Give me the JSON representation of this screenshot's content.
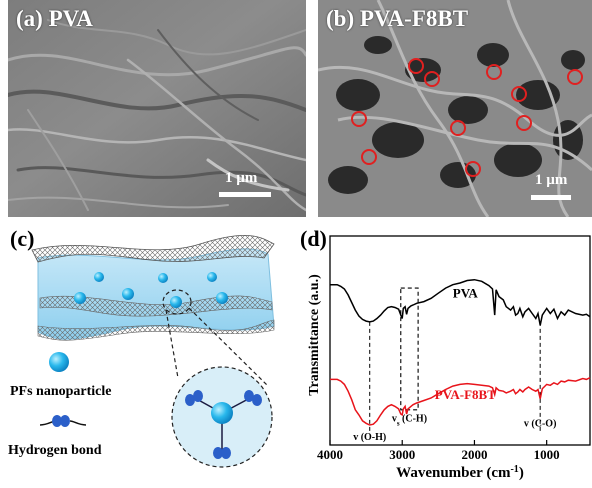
{
  "panel_a": {
    "label": "(a) PVA",
    "scale_text": "1 µm"
  },
  "panel_b": {
    "label": "(b) PVA-F8BT",
    "scale_text": "1 µm"
  },
  "panel_c": {
    "label": "(c)",
    "legend_nanoparticle": "PFs nanoparticle",
    "legend_hbond": "Hydrogen bond"
  },
  "panel_d": {
    "label": "(d)",
    "annotations": {
      "oh": "v (O-H)",
      "ch_v": "v",
      "ch_sub": "s",
      "ch_rest": " (C-H)",
      "co": "v (C-O)"
    }
  },
  "colors": {
    "pva": "#000000",
    "pva_f8bt": "#e8141b",
    "nanoparticle": "#1fb4e8"
  },
  "chart_data": {
    "type": "line",
    "xlabel": "Wavenumber (cm",
    "xlabel_sup": "-1",
    "xlabel_close": ")",
    "ylabel": "Transmittance (a.u.)",
    "x_reversed": true,
    "xlim": [
      4000,
      400
    ],
    "xticks": [
      4000,
      3000,
      2000,
      1000
    ],
    "ylim": [
      0,
      10
    ],
    "series": [
      {
        "name": "PVA",
        "color": "#000000",
        "points": [
          [
            4000,
            8.3
          ],
          [
            3900,
            8.3
          ],
          [
            3850,
            8.2
          ],
          [
            3800,
            8.05
          ],
          [
            3750,
            7.7
          ],
          [
            3700,
            7.25
          ],
          [
            3650,
            6.8
          ],
          [
            3600,
            6.45
          ],
          [
            3550,
            6.25
          ],
          [
            3500,
            6.15
          ],
          [
            3450,
            6.1
          ],
          [
            3400,
            6.15
          ],
          [
            3350,
            6.3
          ],
          [
            3300,
            6.5
          ],
          [
            3250,
            6.75
          ],
          [
            3200,
            6.95
          ],
          [
            3150,
            7.0
          ],
          [
            3100,
            6.95
          ],
          [
            3050,
            6.85
          ],
          [
            3020,
            6.5
          ],
          [
            3000,
            6.3
          ],
          [
            2985,
            6.9
          ],
          [
            2960,
            7.0
          ],
          [
            2940,
            6.55
          ],
          [
            2920,
            6.9
          ],
          [
            2880,
            7.05
          ],
          [
            2850,
            7.1
          ],
          [
            2800,
            7.2
          ],
          [
            2700,
            7.3
          ],
          [
            2600,
            7.5
          ],
          [
            2500,
            7.8
          ],
          [
            2400,
            8.1
          ],
          [
            2300,
            8.3
          ],
          [
            2200,
            8.4
          ],
          [
            2100,
            8.55
          ],
          [
            2000,
            8.6
          ],
          [
            1900,
            8.5
          ],
          [
            1800,
            8.25
          ],
          [
            1750,
            8.05
          ],
          [
            1720,
            6.5
          ],
          [
            1700,
            8.0
          ],
          [
            1660,
            7.6
          ],
          [
            1600,
            7.4
          ],
          [
            1560,
            7.0
          ],
          [
            1500,
            6.8
          ],
          [
            1460,
            7.0
          ],
          [
            1430,
            6.5
          ],
          [
            1400,
            6.6
          ],
          [
            1370,
            6.9
          ],
          [
            1330,
            6.4
          ],
          [
            1300,
            6.7
          ],
          [
            1250,
            6.9
          ],
          [
            1200,
            6.6
          ],
          [
            1150,
            6.3
          ],
          [
            1120,
            6.6
          ],
          [
            1090,
            5.9
          ],
          [
            1060,
            6.5
          ],
          [
            1000,
            6.9
          ],
          [
            950,
            6.6
          ],
          [
            900,
            6.85
          ],
          [
            850,
            6.3
          ],
          [
            800,
            6.7
          ],
          [
            750,
            6.5
          ],
          [
            700,
            6.8
          ],
          [
            600,
            6.6
          ],
          [
            500,
            6.5
          ],
          [
            450,
            6.55
          ],
          [
            400,
            6.4
          ]
        ]
      },
      {
        "name": "PVA-F8BT",
        "color": "#e8141b",
        "points": [
          [
            4000,
            2.7
          ],
          [
            3900,
            2.7
          ],
          [
            3850,
            2.6
          ],
          [
            3800,
            2.4
          ],
          [
            3750,
            2.0
          ],
          [
            3700,
            1.5
          ],
          [
            3650,
            0.9
          ],
          [
            3600,
            0.6
          ],
          [
            3550,
            0.25
          ],
          [
            3500,
            0.1
          ],
          [
            3450,
            0.0
          ],
          [
            3400,
            0.05
          ],
          [
            3350,
            0.25
          ],
          [
            3300,
            0.6
          ],
          [
            3250,
            0.9
          ],
          [
            3200,
            1.1
          ],
          [
            3150,
            1.2
          ],
          [
            3100,
            1.1
          ],
          [
            3050,
            0.95
          ],
          [
            3020,
            0.65
          ],
          [
            3000,
            0.6
          ],
          [
            2985,
            0.95
          ],
          [
            2960,
            1.1
          ],
          [
            2940,
            0.65
          ],
          [
            2920,
            0.95
          ],
          [
            2880,
            1.1
          ],
          [
            2850,
            1.2
          ],
          [
            2800,
            1.3
          ],
          [
            2700,
            1.45
          ],
          [
            2600,
            1.6
          ],
          [
            2500,
            1.85
          ],
          [
            2400,
            2.1
          ],
          [
            2300,
            2.3
          ],
          [
            2200,
            2.4
          ],
          [
            2100,
            2.45
          ],
          [
            2000,
            2.4
          ],
          [
            1900,
            2.35
          ],
          [
            1800,
            2.3
          ],
          [
            1750,
            2.2
          ],
          [
            1720,
            1.8
          ],
          [
            1700,
            2.2
          ],
          [
            1660,
            2.05
          ],
          [
            1600,
            2.0
          ],
          [
            1560,
            1.9
          ],
          [
            1500,
            2.0
          ],
          [
            1460,
            2.1
          ],
          [
            1430,
            1.85
          ],
          [
            1400,
            1.95
          ],
          [
            1370,
            2.1
          ],
          [
            1330,
            1.95
          ],
          [
            1300,
            2.1
          ],
          [
            1250,
            2.25
          ],
          [
            1200,
            2.1
          ],
          [
            1150,
            2.0
          ],
          [
            1120,
            2.1
          ],
          [
            1090,
            1.55
          ],
          [
            1060,
            2.15
          ],
          [
            1000,
            2.4
          ],
          [
            950,
            2.35
          ],
          [
            900,
            2.5
          ],
          [
            850,
            2.4
          ],
          [
            800,
            2.6
          ],
          [
            750,
            2.55
          ],
          [
            700,
            2.65
          ],
          [
            600,
            2.6
          ],
          [
            500,
            2.75
          ],
          [
            450,
            2.7
          ],
          [
            400,
            2.8
          ]
        ]
      }
    ],
    "vlines": [
      3450,
      1090
    ],
    "box_range": [
      3020,
      2780
    ],
    "grid": false
  }
}
